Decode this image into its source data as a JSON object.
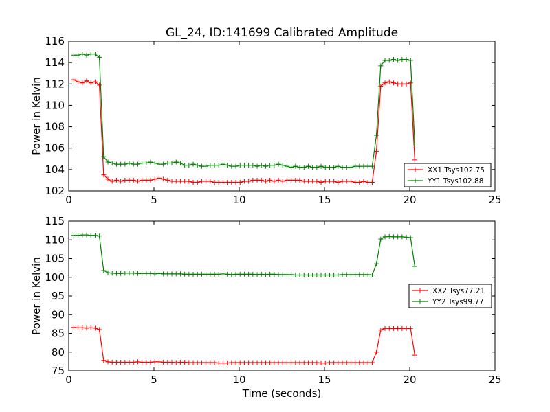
{
  "title": "GL_24, ID:141699 Calibrated Amplitude",
  "colors": {
    "xx": "#ff0000",
    "yy": "#008000",
    "axes": "#000000",
    "background": "#ffffff"
  },
  "chart_data": [
    {
      "type": "line",
      "title": "GL_24, ID:141699 Calibrated Amplitude",
      "xlabel": "",
      "ylabel": "Power in Kelvin",
      "xlim": [
        0,
        25
      ],
      "ylim": [
        102,
        116
      ],
      "xticks": [
        "0",
        "5",
        "10",
        "15",
        "20",
        "25"
      ],
      "yticks": [
        "102",
        "104",
        "106",
        "108",
        "110",
        "112",
        "114",
        "116"
      ],
      "grid": false,
      "legend_position": "lower-right",
      "marker": "+",
      "x": [
        0.3,
        0.55,
        0.8,
        1.05,
        1.3,
        1.55,
        1.8,
        2.05,
        2.3,
        2.55,
        2.8,
        3.05,
        3.3,
        3.55,
        3.8,
        4.05,
        4.3,
        4.55,
        4.8,
        5.05,
        5.3,
        5.55,
        5.8,
        6.05,
        6.3,
        6.55,
        6.8,
        7.05,
        7.3,
        7.55,
        7.8,
        8.05,
        8.3,
        8.55,
        8.8,
        9.05,
        9.3,
        9.55,
        9.8,
        10.05,
        10.3,
        10.55,
        10.8,
        11.05,
        11.3,
        11.55,
        11.8,
        12.05,
        12.3,
        12.55,
        12.8,
        13.05,
        13.3,
        13.55,
        13.8,
        14.05,
        14.3,
        14.55,
        14.8,
        15.05,
        15.3,
        15.55,
        15.8,
        16.05,
        16.3,
        16.55,
        16.8,
        17.05,
        17.3,
        17.55,
        17.8,
        18.05,
        18.3,
        18.55,
        18.8,
        19.05,
        19.3,
        19.55,
        19.8,
        20.05,
        20.3
      ],
      "series": [
        {
          "name": "XX1 Tsys102.75",
          "color": "#ff0000",
          "values": [
            112.4,
            112.2,
            112.1,
            112.3,
            112.1,
            112.2,
            111.9,
            103.5,
            103.1,
            102.9,
            103.0,
            102.9,
            103.0,
            103.0,
            103.0,
            102.9,
            103.0,
            103.0,
            103.0,
            103.1,
            103.2,
            103.1,
            103.0,
            102.9,
            102.9,
            102.9,
            102.9,
            102.9,
            102.8,
            102.8,
            102.9,
            102.9,
            102.9,
            102.8,
            102.8,
            102.8,
            102.8,
            102.8,
            102.8,
            102.8,
            102.9,
            102.9,
            103.0,
            103.0,
            103.0,
            102.9,
            103.0,
            102.9,
            103.0,
            102.9,
            103.0,
            103.0,
            103.0,
            103.0,
            102.9,
            102.9,
            102.9,
            102.9,
            102.8,
            102.9,
            102.9,
            102.9,
            102.8,
            102.9,
            102.9,
            102.9,
            102.8,
            102.8,
            102.9,
            102.8,
            102.8,
            105.7,
            111.8,
            112.1,
            112.2,
            112.1,
            112.0,
            112.0,
            112.0,
            112.1,
            104.9
          ]
        },
        {
          "name": "YY1 Tsys102.88",
          "color": "#008000",
          "values": [
            114.7,
            114.7,
            114.8,
            114.7,
            114.8,
            114.8,
            114.5,
            105.2,
            104.7,
            104.6,
            104.5,
            104.5,
            104.5,
            104.6,
            104.5,
            104.5,
            104.6,
            104.6,
            104.7,
            104.6,
            104.5,
            104.5,
            104.6,
            104.6,
            104.7,
            104.6,
            104.4,
            104.4,
            104.5,
            104.4,
            104.3,
            104.3,
            104.4,
            104.4,
            104.4,
            104.5,
            104.4,
            104.3,
            104.3,
            104.4,
            104.4,
            104.4,
            104.4,
            104.3,
            104.4,
            104.3,
            104.4,
            104.4,
            104.5,
            104.4,
            104.3,
            104.2,
            104.3,
            104.2,
            104.2,
            104.3,
            104.2,
            104.2,
            104.3,
            104.2,
            104.2,
            104.2,
            104.3,
            104.2,
            104.2,
            104.2,
            104.3,
            104.3,
            104.3,
            104.3,
            104.3,
            107.2,
            113.7,
            114.2,
            114.2,
            114.3,
            114.2,
            114.3,
            114.3,
            114.2,
            106.4
          ]
        }
      ]
    },
    {
      "type": "line",
      "title": "",
      "xlabel": "Time (seconds)",
      "ylabel": "Power in Kelvin",
      "xlim": [
        0,
        25
      ],
      "ylim": [
        75,
        115
      ],
      "xticks": [
        "0",
        "5",
        "10",
        "15",
        "20",
        "25"
      ],
      "yticks": [
        "75",
        "80",
        "85",
        "90",
        "95",
        "100",
        "105",
        "110",
        "115"
      ],
      "grid": false,
      "legend_position": "right",
      "marker": "+",
      "x": [
        0.3,
        0.55,
        0.8,
        1.05,
        1.3,
        1.55,
        1.8,
        2.05,
        2.3,
        2.55,
        2.8,
        3.05,
        3.3,
        3.55,
        3.8,
        4.05,
        4.3,
        4.55,
        4.8,
        5.05,
        5.3,
        5.55,
        5.8,
        6.05,
        6.3,
        6.55,
        6.8,
        7.05,
        7.3,
        7.55,
        7.8,
        8.05,
        8.3,
        8.55,
        8.8,
        9.05,
        9.3,
        9.55,
        9.8,
        10.05,
        10.3,
        10.55,
        10.8,
        11.05,
        11.3,
        11.55,
        11.8,
        12.05,
        12.3,
        12.55,
        12.8,
        13.05,
        13.3,
        13.55,
        13.8,
        14.05,
        14.3,
        14.55,
        14.8,
        15.05,
        15.3,
        15.55,
        15.8,
        16.05,
        16.3,
        16.55,
        16.8,
        17.05,
        17.3,
        17.55,
        17.8,
        18.05,
        18.3,
        18.55,
        18.8,
        19.05,
        19.3,
        19.55,
        19.8,
        20.05,
        20.3
      ],
      "series": [
        {
          "name": "XX2 Tsys77.21",
          "color": "#ff0000",
          "values": [
            86.6,
            86.5,
            86.5,
            86.4,
            86.5,
            86.4,
            86.0,
            77.8,
            77.4,
            77.3,
            77.3,
            77.3,
            77.3,
            77.3,
            77.3,
            77.4,
            77.3,
            77.3,
            77.3,
            77.4,
            77.4,
            77.3,
            77.3,
            77.3,
            77.2,
            77.3,
            77.3,
            77.2,
            77.2,
            77.2,
            77.2,
            77.2,
            77.2,
            77.2,
            77.1,
            77.1,
            77.1,
            77.2,
            77.2,
            77.2,
            77.2,
            77.2,
            77.2,
            77.2,
            77.2,
            77.2,
            77.2,
            77.2,
            77.2,
            77.2,
            77.2,
            77.2,
            77.2,
            77.2,
            77.2,
            77.2,
            77.2,
            77.2,
            77.1,
            77.1,
            77.2,
            77.2,
            77.2,
            77.2,
            77.2,
            77.2,
            77.2,
            77.2,
            77.2,
            77.2,
            77.2,
            80.0,
            85.9,
            86.3,
            86.3,
            86.3,
            86.3,
            86.3,
            86.3,
            86.3,
            79.2
          ]
        },
        {
          "name": "YY2 Tsys99.77",
          "color": "#008000",
          "values": [
            111.2,
            111.2,
            111.3,
            111.3,
            111.2,
            111.2,
            111.0,
            101.8,
            101.2,
            101.1,
            101.0,
            101.0,
            101.1,
            101.1,
            101.1,
            101.0,
            101.0,
            101.0,
            101.0,
            100.9,
            101.0,
            100.9,
            100.9,
            100.9,
            100.9,
            100.9,
            100.8,
            100.8,
            100.8,
            100.8,
            100.8,
            100.8,
            100.8,
            100.8,
            100.8,
            100.9,
            100.8,
            100.7,
            100.8,
            100.8,
            100.8,
            100.8,
            100.8,
            100.7,
            100.8,
            100.7,
            100.8,
            100.8,
            100.7,
            100.7,
            100.7,
            100.7,
            100.6,
            100.6,
            100.6,
            100.6,
            100.6,
            100.6,
            100.6,
            100.6,
            100.6,
            100.6,
            100.6,
            100.7,
            100.7,
            100.7,
            100.7,
            100.7,
            100.7,
            100.7,
            100.6,
            103.6,
            110.2,
            110.8,
            110.9,
            110.8,
            110.8,
            110.8,
            110.7,
            110.6,
            102.9
          ]
        }
      ]
    }
  ]
}
